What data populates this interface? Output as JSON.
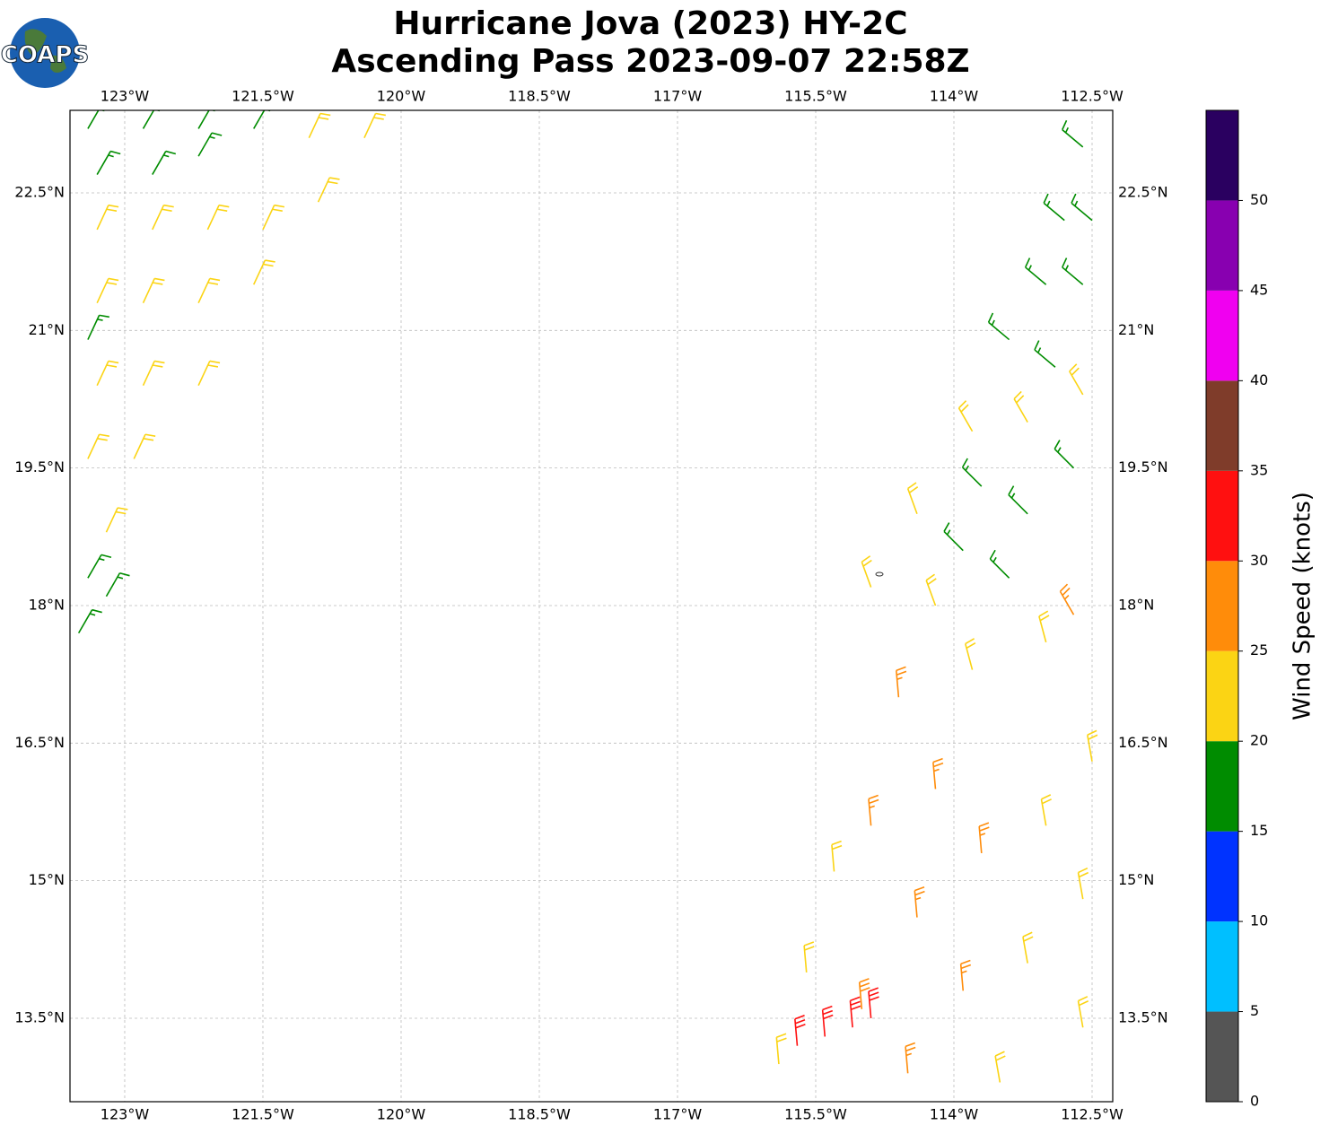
{
  "logo_text": "COAPS",
  "chart_data": {
    "type": "barbs",
    "title": [
      "Hurricane Jova (2023) HY-2C",
      "Ascending Pass 2023-09-07 22:58Z"
    ],
    "xlim": [
      -123.594,
      -112.276
    ],
    "ylim": [
      12.59,
      23.4
    ],
    "xticks": [
      {
        "value": -123,
        "label": "123°W"
      },
      {
        "value": -121.5,
        "label": "121.5°W"
      },
      {
        "value": -120,
        "label": "120°W"
      },
      {
        "value": -118.5,
        "label": "118.5°W"
      },
      {
        "value": -117,
        "label": "117°W"
      },
      {
        "value": -115.5,
        "label": "115.5°W"
      },
      {
        "value": -114,
        "label": "114°W"
      },
      {
        "value": -112.5,
        "label": "112.5°W"
      }
    ],
    "yticks": [
      {
        "value": 13.5,
        "label": "13.5°N"
      },
      {
        "value": 15,
        "label": "15°N"
      },
      {
        "value": 16.5,
        "label": "16.5°N"
      },
      {
        "value": 18,
        "label": "18°N"
      },
      {
        "value": 19.5,
        "label": "19.5°N"
      },
      {
        "value": 21,
        "label": "21°N"
      },
      {
        "value": 22.5,
        "label": "22.5°N"
      }
    ],
    "grid": true,
    "barbs": {
      "lon": [
        -123.4,
        -122.8,
        -122.2,
        -121.6,
        -123.3,
        -122.7,
        -122.2,
        -121.0,
        -120.4,
        -123.3,
        -122.7,
        -122.1,
        -121.5,
        -120.9,
        -123.3,
        -122.8,
        -122.2,
        -121.6,
        -123.3,
        -122.8,
        -122.2,
        -123.4,
        -122.9,
        -123.2,
        -123.4,
        -123.4,
        -123.5,
        -123.2,
        -112.6,
        -112.8,
        -112.5,
        -113.0,
        -112.6,
        -113.4,
        -112.9,
        -113.7,
        -113.2,
        -113.9,
        -113.4,
        -112.7,
        -112.6,
        -113.2,
        -113.8,
        -114.4,
        -114.9,
        -114.2,
        -113.0,
        -113.8,
        -112.5,
        -113.0,
        -112.6,
        -113.2,
        -112.6,
        -113.5,
        -115.3,
        -115.6,
        -115.9,
        -114.6,
        -114.2,
        -113.7,
        -114.9,
        -114.4,
        -113.9,
        -115.0,
        -114.5,
        -112.7,
        -115.7,
        -115.1,
        -115.4,
        -114.9
      ],
      "lat": [
        23.2,
        23.2,
        23.2,
        23.2,
        22.7,
        22.7,
        22.9,
        23.1,
        23.1,
        22.1,
        22.1,
        22.1,
        22.1,
        22.4,
        21.3,
        21.3,
        21.3,
        21.5,
        20.4,
        20.4,
        20.4,
        19.6,
        19.6,
        18.8,
        20.9,
        18.3,
        17.7,
        18.1,
        23.0,
        22.2,
        22.2,
        21.5,
        21.5,
        20.9,
        20.6,
        19.3,
        19.0,
        18.6,
        18.3,
        19.5,
        20.3,
        20.0,
        19.9,
        19.0,
        18.2,
        18.0,
        17.6,
        17.3,
        16.3,
        15.6,
        14.8,
        14.1,
        13.4,
        12.8,
        15.1,
        14.0,
        13.0,
        17.0,
        16.0,
        15.3,
        15.6,
        14.6,
        13.8,
        13.6,
        12.9,
        17.9,
        13.2,
        13.4,
        13.3,
        13.5
      ],
      "speed": [
        17,
        17,
        16,
        17,
        16,
        17,
        16,
        22,
        22,
        22,
        22,
        22,
        21,
        22,
        21,
        22,
        22,
        22,
        21,
        22,
        21,
        21,
        22,
        21,
        17,
        17,
        16,
        17,
        17,
        17,
        17,
        17,
        17,
        16,
        17,
        17,
        16,
        17,
        17,
        17,
        22,
        22,
        22,
        22,
        22,
        22,
        22,
        21,
        22,
        22,
        22,
        22,
        22,
        22,
        22,
        22,
        22,
        27,
        27,
        26,
        27,
        27,
        27,
        28,
        27,
        27,
        31,
        32,
        31,
        31
      ],
      "dir": [
        30,
        30,
        30,
        30,
        30,
        30,
        30,
        25,
        25,
        25,
        25,
        25,
        25,
        25,
        25,
        25,
        25,
        25,
        25,
        25,
        25,
        25,
        25,
        25,
        25,
        30,
        30,
        30,
        310,
        310,
        310,
        310,
        310,
        310,
        310,
        315,
        315,
        315,
        315,
        315,
        330,
        330,
        330,
        340,
        340,
        340,
        345,
        345,
        350,
        350,
        350,
        350,
        350,
        350,
        355,
        355,
        355,
        355,
        355,
        355,
        355,
        355,
        355,
        355,
        355,
        330,
        355,
        355,
        355,
        355
      ]
    },
    "colorbar": {
      "label": "Wind Speed (knots)",
      "clim": [
        0,
        55
      ],
      "ticks": [
        0,
        5,
        10,
        15,
        20,
        25,
        30,
        35,
        40,
        45,
        50
      ],
      "colors": [
        "#555555",
        "#00bfff",
        "#0033ff",
        "#008c00",
        "#fbd414",
        "#ff8c0a",
        "#ff1010",
        "#7f3c2a",
        "#f000f0",
        "#8800b0",
        "#2a0060"
      ]
    }
  }
}
